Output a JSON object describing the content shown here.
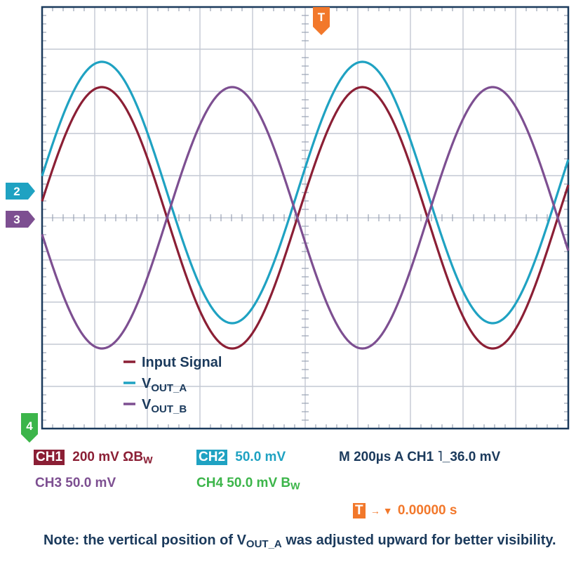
{
  "chart_data": {
    "type": "line",
    "grid": true,
    "trigger_marker": "T",
    "channel_markers": [
      {
        "label": "2",
        "color": "#1fa2c2"
      },
      {
        "label": "3",
        "color": "#7d4f91"
      },
      {
        "label": "4",
        "color": "#3cb54a"
      }
    ],
    "series": [
      {
        "name": "Input Signal",
        "color": "#8b1f35",
        "amplitude_div": 3.1,
        "offset_div": 0.0,
        "phase_deg": 0
      },
      {
        "name": "V_OUT_A",
        "color": "#1fa2c2",
        "amplitude_div": 3.1,
        "offset_div": 0.6,
        "phase_deg": 0
      },
      {
        "name": "V_OUT_B",
        "color": "#7d4f91",
        "amplitude_div": 3.1,
        "offset_div": 0.0,
        "phase_deg": 180
      }
    ],
    "period_div": 4.95,
    "x_start_div": -0.1,
    "xlim_div": [
      0,
      10
    ],
    "ylim_div": [
      -5,
      5
    ]
  },
  "legend": {
    "input": "Input Signal",
    "voa_main": "V",
    "voa_sub": "OUT_A",
    "vob_main": "V",
    "vob_sub": "OUT_B"
  },
  "readout": {
    "ch1_tag": "CH1",
    "ch1_val": "200 mV ΩB",
    "ch1_sub": "W",
    "ch2_tag": "CH2",
    "ch2_val": "50.0 mV",
    "timebase": "M 200µs  A  CH1  ˥_36.0 mV",
    "ch3": "CH3  50.0 mV",
    "ch4_val": "CH4  50.0 mV B",
    "ch4_sub": "W",
    "trig_tag": "T",
    "trig_arrow": "→ ▼",
    "trig_val": "0.00000 s"
  },
  "note": {
    "pre": "Note: the vertical position of V",
    "sub": "OUT_A",
    "post": " was adjusted upward for better visibility."
  },
  "colors": {
    "ch1": "#8b1f35",
    "ch2": "#1fa2c2",
    "ch3": "#7d4f91",
    "ch4": "#3cb54a",
    "trigger": "#f2782b",
    "navy": "#1b3a5c"
  }
}
